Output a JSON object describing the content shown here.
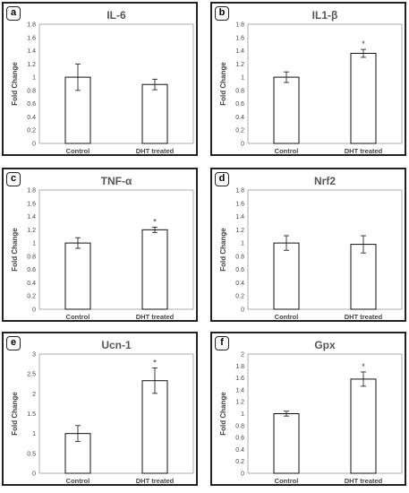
{
  "chart_data": [
    {
      "label": "a",
      "title": "IL-6",
      "type": "bar",
      "categories": [
        "Control",
        "DHT treated"
      ],
      "values": [
        1.0,
        0.89
      ],
      "errors": [
        0.2,
        0.08
      ],
      "significant": [
        "",
        ""
      ],
      "ylabel": "Fold Change",
      "ylim": [
        0,
        1.8
      ],
      "yticks": [
        "0",
        "0.2",
        "0.4",
        "0.6",
        "0.8",
        "1",
        "1.2",
        "1.4",
        "1.6",
        "1.8"
      ]
    },
    {
      "label": "b",
      "title": "IL1-β",
      "type": "bar",
      "categories": [
        "Control",
        "DHT treated"
      ],
      "values": [
        1.0,
        1.36
      ],
      "errors": [
        0.08,
        0.06
      ],
      "significant": [
        "",
        "*"
      ],
      "ylabel": "Fold Change",
      "ylim": [
        0,
        1.8
      ],
      "yticks": [
        "0",
        "0.2",
        "0.4",
        "0.6",
        "0.8",
        "1",
        "1.2",
        "1.4",
        "1.6",
        "1.8"
      ]
    },
    {
      "label": "c",
      "title": "TNF-α",
      "type": "bar",
      "categories": [
        "Control",
        "DHT treated"
      ],
      "values": [
        1.0,
        1.2
      ],
      "errors": [
        0.08,
        0.04
      ],
      "significant": [
        "",
        "*"
      ],
      "ylabel": "Fold Change",
      "ylim": [
        0,
        1.8
      ],
      "yticks": [
        "0",
        "0.2",
        "0.4",
        "0.6",
        "0.8",
        "1",
        "1.2",
        "1.4",
        "1.6",
        "1.8"
      ]
    },
    {
      "label": "d",
      "title": "Nrf2",
      "type": "bar",
      "categories": [
        "Control",
        "DHT treated"
      ],
      "values": [
        1.0,
        0.98
      ],
      "errors": [
        0.11,
        0.13
      ],
      "significant": [
        "",
        ""
      ],
      "ylabel": "Fold Change",
      "ylim": [
        0,
        1.8
      ],
      "yticks": [
        "0",
        "0.2",
        "0.4",
        "0.6",
        "0.8",
        "1",
        "1.2",
        "1.4",
        "1.6",
        "1.8"
      ]
    },
    {
      "label": "e",
      "title": "Ucn-1",
      "type": "bar",
      "categories": [
        "Control",
        "DHT treated"
      ],
      "values": [
        1.0,
        2.33
      ],
      "errors": [
        0.2,
        0.32
      ],
      "significant": [
        "",
        "*"
      ],
      "ylabel": "Fold Change",
      "ylim": [
        0,
        3
      ],
      "yticks": [
        "0",
        "0.5",
        "1",
        "1.5",
        "2",
        "2.5",
        "3"
      ]
    },
    {
      "label": "f",
      "title": "Gpx",
      "type": "bar",
      "categories": [
        "Control",
        "DHT treated"
      ],
      "values": [
        1.0,
        1.58
      ],
      "errors": [
        0.04,
        0.12
      ],
      "significant": [
        "",
        "*"
      ],
      "ylabel": "Fold Change",
      "ylim": [
        0,
        2
      ],
      "yticks": [
        "0",
        "0.2",
        "0.4",
        "0.6",
        "0.8",
        "1",
        "1.2",
        "1.4",
        "1.6",
        "1.8",
        "2"
      ]
    }
  ]
}
